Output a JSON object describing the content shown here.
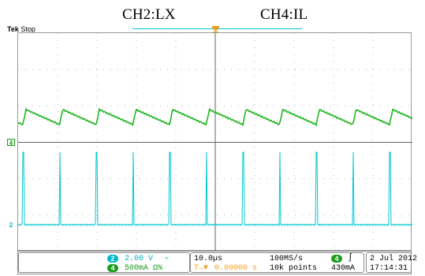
{
  "annotation": {
    "ch2_label": "CH2:LX",
    "ch4_label": "CH4:IL"
  },
  "header": {
    "brand": "Tek",
    "status": "Stop"
  },
  "markers": {
    "ch4": "4",
    "ch2": "2",
    "trigger": "T"
  },
  "channels": {
    "ch2": {
      "number": "2",
      "scale": "2.00 V",
      "extra": "≈",
      "color": "#00c0d0"
    },
    "ch4": {
      "number": "4",
      "scale": "500mA Ω%",
      "color": "#1aa81a"
    }
  },
  "timebase": {
    "scale": "10.0µs",
    "sample_rate": "100MS/s",
    "delay": "0.00000 s",
    "delay_prefix": "T→▼",
    "record": "10k points"
  },
  "trigger": {
    "channel": "4",
    "slope": "ʃ",
    "level": "430mA"
  },
  "datetime": {
    "date": "2 Jul  2012",
    "time": "17:14:31"
  },
  "colors": {
    "ch2": "#00c8d0",
    "ch4": "#22b522",
    "trigger": "#f0a020",
    "grid": "#888888"
  }
}
